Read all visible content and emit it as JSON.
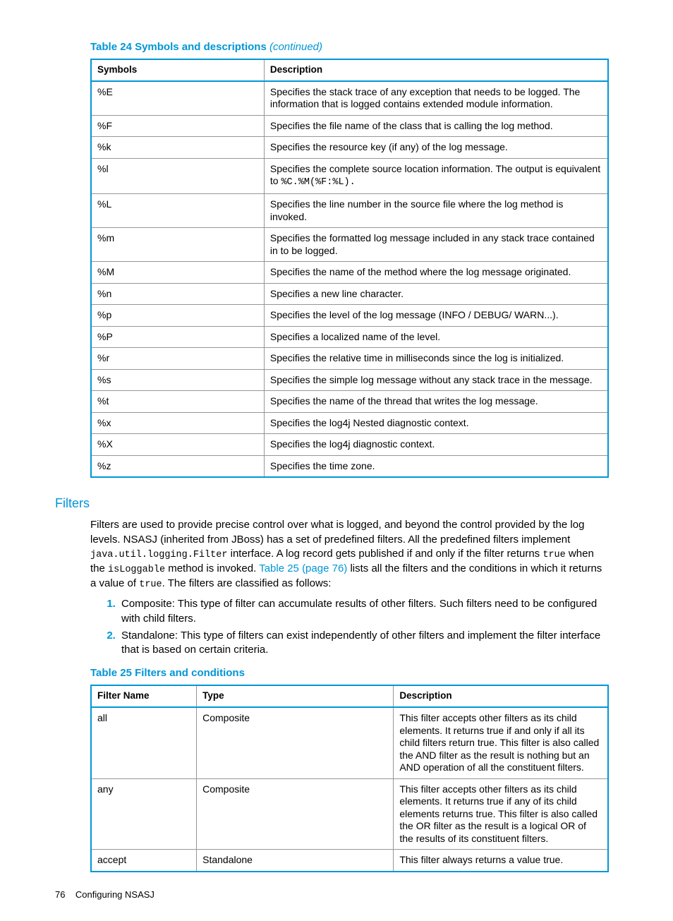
{
  "colors": {
    "brand": "#0096d6",
    "cell_border": "#969696",
    "text": "#000000",
    "background": "#ffffff"
  },
  "table24": {
    "caption_main": "Table 24 Symbols and descriptions ",
    "caption_cont": "(continued)",
    "head_symbol": "Symbols",
    "head_desc": "Description",
    "rows": {
      "r0_sym": "%E",
      "r0_desc": "Specifies the stack trace of any exception that needs to be logged. The information that is logged contains extended module information.",
      "r1_sym": "%F",
      "r1_desc": "Specifies the file name of the class that is calling the log method.",
      "r2_sym": "%k",
      "r2_desc": "Specifies the resource key (if any) of the log message.",
      "r3_sym": "%l",
      "r3_desc_a": "Specifies the complete source location information. The output is equivalent to ",
      "r3_desc_b": "%C.%M(%F:%L).",
      "r4_sym": "%L",
      "r4_desc": "Specifies the line number in the source file where the log method is invoked.",
      "r5_sym": "%m",
      "r5_desc": "Specifies the formatted log message included in any stack trace contained in to be logged.",
      "r6_sym": "%M",
      "r6_desc": "Specifies the name of the method where the log message originated.",
      "r7_sym": "%n",
      "r7_desc": "Specifies a new line character.",
      "r8_sym": "%p",
      "r8_desc": "Specifies the level of the log message (INFO / DEBUG/ WARN...).",
      "r9_sym": "%P",
      "r9_desc": "Specifies a localized name of the level.",
      "r10_sym": "%r",
      "r10_desc": "Specifies the relative time in milliseconds since the log is initialized.",
      "r11_sym": "%s",
      "r11_desc": "Specifies the simple log message without any stack trace in the message.",
      "r12_sym": "%t",
      "r12_desc": "Specifies the name of the thread that writes the log message.",
      "r13_sym": "%x",
      "r13_desc": "Specifies the log4j Nested diagnostic context.",
      "r14_sym": "%X",
      "r14_desc": "Specifies the log4j diagnostic context.",
      "r15_sym": "%z",
      "r15_desc": "Specifies the time zone."
    }
  },
  "filters": {
    "title": "Filters",
    "para": {
      "a": "Filters are used to provide precise control over what is logged, and beyond the control provided by the log levels. NSASJ (inherited from JBoss) has a set of predefined filters. All the predefined filters implement ",
      "b": "java.util.logging.Filter",
      "c": " interface. A log record gets published if and only if the filter returns ",
      "d": "true",
      "e": " when the ",
      "f": "isLoggable",
      "g": " method is invoked. ",
      "h": "Table 25 (page 76)",
      "i": " lists all the filters and the conditions in which it returns a value of ",
      "j": "true",
      "k": ". The filters are classified as follows:"
    },
    "list": {
      "i1": "Composite: This type of filter can accumulate results of other filters. Such filters need to be configured with child filters.",
      "i2": "Standalone: This type of filters can exist independently of other filters and implement the filter interface that is based on certain criteria."
    }
  },
  "table25": {
    "caption": "Table 25 Filters and conditions",
    "head_name": "Filter Name",
    "head_type": "Type",
    "head_desc": "Description",
    "rows": {
      "r0_name": "all",
      "r0_type": "Composite",
      "r0_desc": "This filter accepts other filters as its child elements. It returns true if and only if all its child filters return true. This filter is also called the AND filter as the result is nothing but an AND operation of all the constituent filters.",
      "r1_name": "any",
      "r1_type": "Composite",
      "r1_desc": "This filter accepts other filters as its child elements. It returns true if any of its child elements returns true. This filter is also called the OR filter as the result is a logical OR of the results of its constituent filters.",
      "r2_name": "accept",
      "r2_type": "Standalone",
      "r2_desc": "This filter always returns a value true."
    }
  },
  "footer": {
    "page": "76",
    "title": "Configuring NSASJ"
  }
}
